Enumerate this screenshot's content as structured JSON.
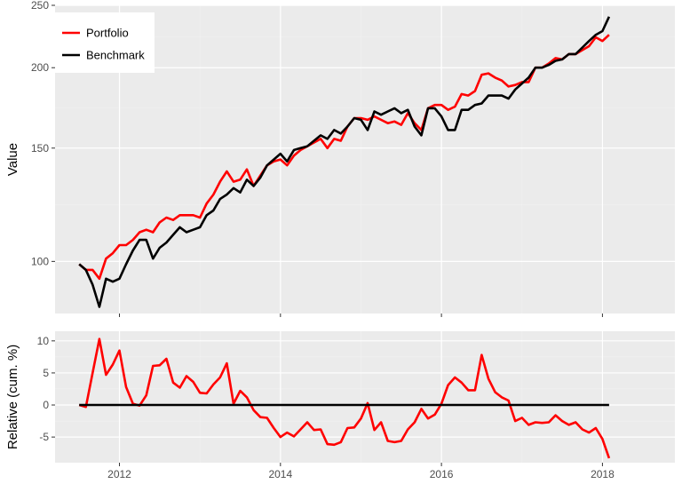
{
  "chart_data": [
    {
      "type": "line",
      "ylabel": "Value",
      "xlabel": "",
      "y_scale": "log",
      "ylim": [
        83,
        250
      ],
      "yticks": [
        100,
        150,
        200,
        250
      ],
      "x_ticks": [
        2012,
        2014,
        2016,
        2018
      ],
      "xlim": [
        2011.2,
        2018.9
      ],
      "grid": true,
      "legend_position": "top-left",
      "series": [
        {
          "name": "Portfolio",
          "color": "#ff0000",
          "x": [
            2011.5,
            2011.583,
            2011.667,
            2011.75,
            2011.833,
            2011.917,
            2012.0,
            2012.083,
            2012.167,
            2012.25,
            2012.333,
            2012.417,
            2012.5,
            2012.583,
            2012.667,
            2012.75,
            2012.833,
            2012.917,
            2013.0,
            2013.083,
            2013.167,
            2013.25,
            2013.333,
            2013.417,
            2013.5,
            2013.583,
            2013.667,
            2013.75,
            2013.833,
            2013.917,
            2014.0,
            2014.083,
            2014.167,
            2014.25,
            2014.333,
            2014.417,
            2014.5,
            2014.583,
            2014.667,
            2014.75,
            2014.833,
            2014.917,
            2015.0,
            2015.083,
            2015.167,
            2015.25,
            2015.333,
            2015.417,
            2015.5,
            2015.583,
            2015.667,
            2015.75,
            2015.833,
            2015.917,
            2016.0,
            2016.083,
            2016.167,
            2016.25,
            2016.333,
            2016.417,
            2016.5,
            2016.583,
            2016.667,
            2016.75,
            2016.833,
            2016.917,
            2017.0,
            2017.083,
            2017.167,
            2017.25,
            2017.333,
            2017.417,
            2017.5,
            2017.583,
            2017.667,
            2017.75,
            2017.833,
            2017.917,
            2018.0,
            2018.083
          ],
          "values": [
            99,
            97,
            97,
            94,
            101,
            103,
            106,
            106,
            108,
            111,
            112,
            111,
            115,
            117,
            116,
            118,
            118,
            118,
            117,
            123,
            127,
            133,
            138,
            133,
            134,
            139,
            131,
            136,
            141,
            143,
            144,
            141,
            146,
            149,
            151,
            153,
            155,
            150,
            155,
            154,
            162,
            167,
            167,
            166,
            168,
            166,
            164,
            165,
            163,
            170,
            164,
            160,
            173,
            175,
            175,
            172,
            174,
            182,
            181,
            184,
            195,
            196,
            193,
            191,
            187,
            188,
            190,
            190,
            200,
            200,
            203,
            207,
            206,
            210,
            210,
            213,
            216,
            223,
            220,
            225
          ]
        },
        {
          "name": "Benchmark",
          "color": "#000000",
          "x": [
            2011.5,
            2011.583,
            2011.667,
            2011.75,
            2011.833,
            2011.917,
            2012.0,
            2012.083,
            2012.167,
            2012.25,
            2012.333,
            2012.417,
            2012.5,
            2012.583,
            2012.667,
            2012.75,
            2012.833,
            2012.917,
            2013.0,
            2013.083,
            2013.167,
            2013.25,
            2013.333,
            2013.417,
            2013.5,
            2013.583,
            2013.667,
            2013.75,
            2013.833,
            2013.917,
            2014.0,
            2014.083,
            2014.167,
            2014.25,
            2014.333,
            2014.417,
            2014.5,
            2014.583,
            2014.667,
            2014.75,
            2014.833,
            2014.917,
            2015.0,
            2015.083,
            2015.167,
            2015.25,
            2015.333,
            2015.417,
            2015.5,
            2015.583,
            2015.667,
            2015.75,
            2015.833,
            2015.917,
            2016.0,
            2016.083,
            2016.167,
            2016.25,
            2016.333,
            2016.417,
            2016.5,
            2016.583,
            2016.667,
            2016.75,
            2016.833,
            2016.917,
            2017.0,
            2017.083,
            2017.167,
            2017.25,
            2017.333,
            2017.417,
            2017.5,
            2017.583,
            2017.667,
            2017.75,
            2017.833,
            2017.917,
            2018.0,
            2018.083
          ],
          "values": [
            99,
            97,
            92,
            85,
            94,
            93,
            94,
            99,
            104,
            108,
            108,
            101,
            105,
            107,
            110,
            113,
            111,
            112,
            113,
            118,
            120,
            125,
            127,
            130,
            128,
            134,
            131,
            135,
            141,
            144,
            147,
            143,
            149,
            150,
            151,
            154,
            157,
            155,
            160,
            158,
            162,
            167,
            166,
            160,
            171,
            169,
            171,
            173,
            170,
            172,
            162,
            157,
            173,
            173,
            168,
            160,
            160,
            172,
            172,
            175,
            176,
            181,
            181,
            181,
            179,
            185,
            189,
            193,
            200,
            200,
            202,
            205,
            206,
            210,
            210,
            215,
            220,
            225,
            228,
            240
          ]
        }
      ]
    },
    {
      "type": "line",
      "ylabel": "Relative (cum. %)",
      "xlabel": "",
      "ylim": [
        -9,
        11.5
      ],
      "yticks": [
        -5,
        0,
        5,
        10
      ],
      "ytick_labels": [
        "-5",
        "0",
        "5",
        "10"
      ],
      "x_ticks": [
        2012,
        2014,
        2016,
        2018
      ],
      "x_tick_labels": [
        "2012",
        "2014",
        "2016",
        "2018"
      ],
      "xlim": [
        2011.2,
        2018.9
      ],
      "grid": true,
      "series": [
        {
          "name": "Relative",
          "color": "#ff0000",
          "x": [
            2011.5,
            2011.583,
            2011.667,
            2011.75,
            2011.833,
            2011.917,
            2012.0,
            2012.083,
            2012.167,
            2012.25,
            2012.333,
            2012.417,
            2012.5,
            2012.583,
            2012.667,
            2012.75,
            2012.833,
            2012.917,
            2013.0,
            2013.083,
            2013.167,
            2013.25,
            2013.333,
            2013.417,
            2013.5,
            2013.583,
            2013.667,
            2013.75,
            2013.833,
            2013.917,
            2014.0,
            2014.083,
            2014.167,
            2014.25,
            2014.333,
            2014.417,
            2014.5,
            2014.583,
            2014.667,
            2014.75,
            2014.833,
            2014.917,
            2015.0,
            2015.083,
            2015.167,
            2015.25,
            2015.333,
            2015.417,
            2015.5,
            2015.583,
            2015.667,
            2015.75,
            2015.833,
            2015.917,
            2016.0,
            2016.083,
            2016.167,
            2016.25,
            2016.333,
            2016.417,
            2016.5,
            2016.583,
            2016.667,
            2016.75,
            2016.833,
            2016.917,
            2017.0,
            2017.083,
            2017.167,
            2017.25,
            2017.333,
            2017.417,
            2017.5,
            2017.583,
            2017.667,
            2017.75,
            2017.833,
            2017.917,
            2018.0,
            2018.083
          ],
          "values": [
            0,
            -0.3,
            5.0,
            10.3,
            4.7,
            6.3,
            8.5,
            2.8,
            0.2,
            -0.1,
            1.5,
            6.1,
            6.2,
            7.2,
            3.5,
            2.7,
            4.5,
            3.6,
            1.9,
            1.8,
            3.2,
            4.3,
            6.5,
            0.2,
            2.2,
            1.2,
            -0.8,
            -1.9,
            -2.0,
            -3.6,
            -5.0,
            -4.3,
            -4.9,
            -3.8,
            -2.7,
            -3.9,
            -3.8,
            -6.1,
            -6.2,
            -5.8,
            -3.6,
            -3.5,
            -2.1,
            0.3,
            -3.9,
            -2.7,
            -5.6,
            -5.8,
            -5.6,
            -3.8,
            -2.7,
            -0.6,
            -2.1,
            -1.5,
            0.2,
            3.1,
            4.3,
            3.5,
            2.3,
            2.3,
            7.8,
            4.1,
            2.0,
            1.2,
            0.7,
            -2.5,
            -2.0,
            -3.1,
            -2.7,
            -2.8,
            -2.7,
            -1.6,
            -2.5,
            -3.1,
            -2.7,
            -3.8,
            -4.3,
            -3.6,
            -5.3,
            -8.3
          ]
        },
        {
          "name": "Zero",
          "color": "#000000",
          "x": [
            2011.5,
            2018.083
          ],
          "values": [
            0,
            0
          ]
        }
      ]
    }
  ]
}
